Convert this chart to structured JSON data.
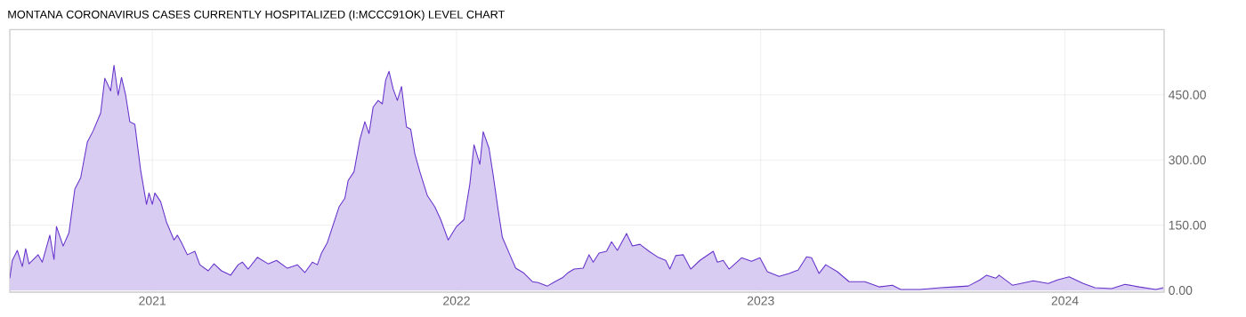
{
  "chart_data": {
    "type": "area",
    "title": "MONTANA CORONAVIRUS CASES CURRENTLY HOSPITALIZED (I:MCCC91OK) LEVEL CHART",
    "grid": true,
    "xlim": [
      "2020-07-14",
      "2024-04-29"
    ],
    "xticks": [
      {
        "value": "2021-01-01",
        "label": "2021"
      },
      {
        "value": "2022-01-01",
        "label": "2022"
      },
      {
        "value": "2023-01-01",
        "label": "2023"
      },
      {
        "value": "2024-01-01",
        "label": "2024"
      }
    ],
    "ylim": [
      -4,
      600
    ],
    "yticks": [
      {
        "value": 0,
        "label": "0.00"
      },
      {
        "value": 150,
        "label": "150.00"
      },
      {
        "value": 300,
        "label": "300.00"
      },
      {
        "value": 450,
        "label": "450.00"
      }
    ],
    "x": [
      "2020-07-14",
      "2020-07-17",
      "2020-07-23",
      "2020-07-29",
      "2020-08-02",
      "2020-08-06",
      "2020-08-17",
      "2020-08-22",
      "2020-08-31",
      "2020-09-05",
      "2020-09-08",
      "2020-09-16",
      "2020-09-23",
      "2020-09-30",
      "2020-10-07",
      "2020-10-15",
      "2020-10-22",
      "2020-10-31",
      "2020-11-05",
      "2020-11-12",
      "2020-11-16",
      "2020-11-21",
      "2020-11-25",
      "2020-11-30",
      "2020-12-05",
      "2020-12-11",
      "2020-12-18",
      "2020-12-25",
      "2020-12-28",
      "2021-01-01",
      "2021-01-04",
      "2021-01-11",
      "2021-01-18",
      "2021-01-27",
      "2021-01-31",
      "2021-02-05",
      "2021-02-12",
      "2021-02-21",
      "2021-02-27",
      "2021-03-09",
      "2021-03-16",
      "2021-03-25",
      "2021-04-05",
      "2021-04-14",
      "2021-04-19",
      "2021-04-26",
      "2021-05-07",
      "2021-05-20",
      "2021-05-30",
      "2021-06-12",
      "2021-06-24",
      "2021-07-03",
      "2021-07-12",
      "2021-07-18",
      "2021-07-23",
      "2021-07-30",
      "2021-08-06",
      "2021-08-13",
      "2021-08-20",
      "2021-08-24",
      "2021-08-31",
      "2021-09-07",
      "2021-09-13",
      "2021-09-18",
      "2021-09-23",
      "2021-09-29",
      "2021-10-04",
      "2021-10-08",
      "2021-10-12",
      "2021-10-17",
      "2021-10-22",
      "2021-10-27",
      "2021-11-02",
      "2021-11-07",
      "2021-11-12",
      "2021-11-18",
      "2021-11-27",
      "2021-12-06",
      "2021-12-13",
      "2021-12-22",
      "2022-01-01",
      "2022-01-10",
      "2022-01-17",
      "2022-01-22",
      "2022-01-29",
      "2022-02-02",
      "2022-02-09",
      "2022-02-14",
      "2022-02-20",
      "2022-02-25",
      "2022-03-06",
      "2022-03-13",
      "2022-03-22",
      "2022-04-02",
      "2022-04-09",
      "2022-04-20",
      "2022-04-29",
      "2022-05-08",
      "2022-05-15",
      "2022-05-22",
      "2022-06-02",
      "2022-06-09",
      "2022-06-14",
      "2022-06-21",
      "2022-06-30",
      "2022-07-06",
      "2022-07-13",
      "2022-07-24",
      "2022-07-31",
      "2022-08-09",
      "2022-08-20",
      "2022-08-31",
      "2022-09-09",
      "2022-09-14",
      "2022-09-21",
      "2022-09-30",
      "2022-10-09",
      "2022-10-20",
      "2022-11-05",
      "2022-11-10",
      "2022-11-17",
      "2022-11-24",
      "2022-12-09",
      "2022-12-21",
      "2022-12-31",
      "2023-01-09",
      "2023-01-23",
      "2023-02-04",
      "2023-02-15",
      "2023-02-25",
      "2023-03-03",
      "2023-03-12",
      "2023-03-20",
      "2023-04-03",
      "2023-04-17",
      "2023-05-06",
      "2023-05-23",
      "2023-06-08",
      "2023-06-18",
      "2023-07-11",
      "2023-08-05",
      "2023-08-21",
      "2023-09-07",
      "2023-09-21",
      "2023-09-29",
      "2023-10-10",
      "2023-10-14",
      "2023-10-30",
      "2023-11-24",
      "2023-12-12",
      "2023-12-23",
      "2024-01-06",
      "2024-01-23",
      "2024-02-06",
      "2024-02-26",
      "2024-03-13",
      "2024-03-30",
      "2024-04-19",
      "2024-04-28"
    ],
    "series": [
      {
        "color": "#6633cc",
        "values": [
          28,
          69,
          92,
          55,
          96,
          61,
          82,
          65,
          127,
          71,
          147,
          102,
          133,
          233,
          259,
          341,
          367,
          408,
          488,
          459,
          518,
          449,
          490,
          449,
          388,
          382,
          276,
          198,
          224,
          198,
          224,
          204,
          157,
          116,
          127,
          110,
          82,
          90,
          59,
          45,
          61,
          45,
          35,
          59,
          65,
          49,
          76,
          61,
          69,
          51,
          59,
          41,
          65,
          59,
          86,
          110,
          151,
          192,
          212,
          253,
          273,
          347,
          388,
          361,
          422,
          437,
          429,
          484,
          504,
          463,
          437,
          469,
          376,
          371,
          314,
          273,
          218,
          192,
          163,
          116,
          147,
          163,
          245,
          335,
          290,
          365,
          327,
          265,
          184,
          122,
          82,
          51,
          41,
          20,
          18,
          10,
          20,
          29,
          41,
          49,
          51,
          82,
          65,
          86,
          90,
          112,
          92,
          131,
          102,
          106,
          90,
          76,
          69,
          49,
          80,
          82,
          49,
          69,
          90,
          65,
          69,
          49,
          75,
          67,
          75,
          43,
          32,
          39,
          47,
          77,
          75,
          39,
          59,
          43,
          20,
          20,
          8,
          12,
          2,
          2,
          6,
          8,
          10,
          24,
          35,
          28,
          35,
          12,
          22,
          16,
          24,
          31,
          16,
          6,
          4,
          14,
          8,
          2,
          6
        ]
      }
    ]
  }
}
